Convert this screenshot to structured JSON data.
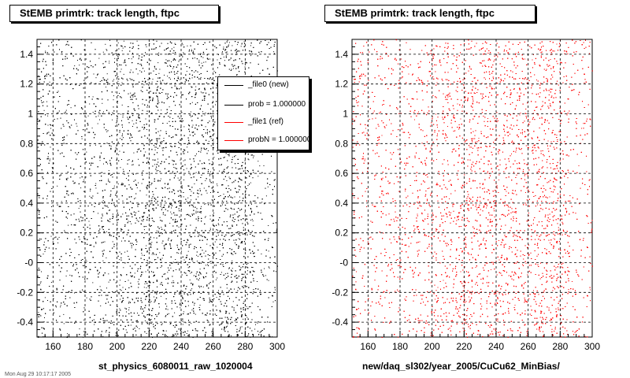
{
  "chart_data": [
    {
      "type": "scatter",
      "title": "StEMB primtrk: track length, ftpc",
      "xlabel": "st_physics_6080011_raw_1020004",
      "ylabel": "",
      "xlim": [
        150,
        300
      ],
      "ylim": [
        -0.5,
        1.5
      ],
      "x_ticks": [
        "160",
        "180",
        "200",
        "220",
        "240",
        "260",
        "280",
        "300"
      ],
      "y_ticks": [
        "-0.4",
        "-0.2",
        "-0",
        "0.2",
        "0.4",
        "0.6",
        "0.8",
        "1",
        "1.2",
        "1.4"
      ],
      "grid": true,
      "color": "#000000",
      "n_points": 12000,
      "density": {
        "x_bands": [
          [
            150,
            190,
            0.45
          ],
          [
            190,
            215,
            0.8
          ],
          [
            215,
            285,
            1.0
          ],
          [
            285,
            300,
            0.35
          ]
        ]
      }
    },
    {
      "type": "scatter",
      "title": "StEMB primtrk: track length, ftpc",
      "xlabel": "new/daq_sl302/year_2005/CuCu62_MinBias/",
      "ylabel": "",
      "xlim": [
        150,
        300
      ],
      "ylim": [
        -0.5,
        1.5
      ],
      "x_ticks": [
        "160",
        "180",
        "200",
        "220",
        "240",
        "260",
        "280",
        "300"
      ],
      "y_ticks": [
        "-0.4",
        "-0.2",
        "-0",
        "0.2",
        "0.4",
        "0.6",
        "0.8",
        "1",
        "1.2",
        "1.4"
      ],
      "grid": true,
      "color": "#ff0000",
      "n_points": 12000,
      "density": {
        "x_bands": [
          [
            150,
            190,
            0.45
          ],
          [
            190,
            215,
            0.8
          ],
          [
            215,
            285,
            1.0
          ],
          [
            285,
            300,
            0.35
          ]
        ]
      }
    }
  ],
  "legend": {
    "entries": [
      {
        "label": "_file0 (new)",
        "color": "#000000"
      },
      {
        "label": "prob = 1.000000",
        "color": "#000000"
      },
      {
        "label": "_file1 (ref)",
        "color": "#ff0000"
      },
      {
        "label": "probN = 1.000000",
        "color": "#ff0000"
      }
    ]
  },
  "footer": "Mon Aug 29 10:17:17 2005"
}
